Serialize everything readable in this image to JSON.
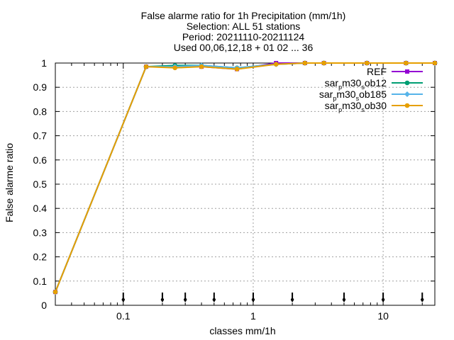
{
  "chart_data": {
    "type": "line",
    "title_lines": [
      "False alarme ratio  for 1h Precipitation (mm/1h)",
      "Selection: ALL     51 stations",
      "Period: 20211110-20211124",
      "Used 00,06,12,18 + 01 02 ... 36"
    ],
    "xlabel": "classes mm/1h",
    "ylabel": "False alarme ratio",
    "xscale": "log",
    "xlim": [
      0.03,
      25
    ],
    "ylim": [
      0,
      1
    ],
    "x_ticks": [
      {
        "v": 0.1,
        "label": "0.1"
      },
      {
        "v": 1,
        "label": "1"
      },
      {
        "v": 10,
        "label": "10"
      }
    ],
    "y_ticks": [
      {
        "v": 0,
        "label": "0"
      },
      {
        "v": 0.1,
        "label": "0.1"
      },
      {
        "v": 0.2,
        "label": "0.2"
      },
      {
        "v": 0.3,
        "label": "0.3"
      },
      {
        "v": 0.4,
        "label": "0.4"
      },
      {
        "v": 0.5,
        "label": "0.5"
      },
      {
        "v": 0.6,
        "label": "0.6"
      },
      {
        "v": 0.7,
        "label": "0.7"
      },
      {
        "v": 0.8,
        "label": "0.8"
      },
      {
        "v": 0.9,
        "label": "0.9"
      },
      {
        "v": 1,
        "label": "1"
      }
    ],
    "grid": true,
    "legend_position": "top-right",
    "threshold_marks": [
      0.1,
      0.2,
      0.3,
      0.5,
      1,
      2,
      5,
      10,
      20
    ],
    "series": [
      {
        "name": "REF",
        "color": "#9400d3",
        "marker": "square",
        "x": [
          0.03,
          0.15,
          0.25,
          0.4,
          0.75,
          1.5,
          2.5,
          3.5,
          7.5,
          15,
          25
        ],
        "y": [
          0.055,
          0.985,
          0.985,
          0.985,
          0.975,
          1.0,
          1.0,
          1.0,
          1.0,
          1.0,
          1.0
        ]
      },
      {
        "name": "sar_pm30_sob12",
        "name_parts": {
          "a": "sar",
          "b": "p",
          "c": "m30",
          "d": "s",
          "e": "ob12"
        },
        "color": "#009e73",
        "marker": "circle",
        "x": [
          0.03,
          0.15,
          0.25,
          0.4,
          0.75,
          1.5,
          2.5,
          3.5,
          7.5,
          15,
          25
        ],
        "y": [
          0.055,
          0.985,
          0.99,
          0.99,
          0.98,
          0.995,
          1.0,
          1.0,
          1.0,
          1.0,
          1.0
        ]
      },
      {
        "name": "sar_pm30_sob185",
        "name_parts": {
          "a": "sar",
          "b": "p",
          "c": "m30",
          "d": "s",
          "e": "ob185"
        },
        "color": "#56b4e9",
        "marker": "diamond",
        "x": [
          0.03,
          0.15,
          0.25,
          0.4,
          0.75,
          1.5,
          2.5,
          3.5,
          7.5,
          15,
          25
        ],
        "y": [
          0.055,
          0.985,
          0.985,
          0.99,
          0.98,
          0.995,
          1.0,
          1.0,
          1.0,
          1.0,
          1.0
        ]
      },
      {
        "name": "sar_pm30_sob30",
        "name_parts": {
          "a": "sar",
          "b": "p",
          "c": "m30",
          "d": "s",
          "e": "ob30"
        },
        "color": "#e69f00",
        "marker": "circle",
        "x": [
          0.03,
          0.15,
          0.25,
          0.4,
          0.75,
          1.5,
          2.5,
          3.5,
          7.5,
          15,
          25
        ],
        "y": [
          0.055,
          0.985,
          0.98,
          0.985,
          0.975,
          0.995,
          1.0,
          1.0,
          1.0,
          1.0,
          1.0
        ]
      }
    ]
  }
}
